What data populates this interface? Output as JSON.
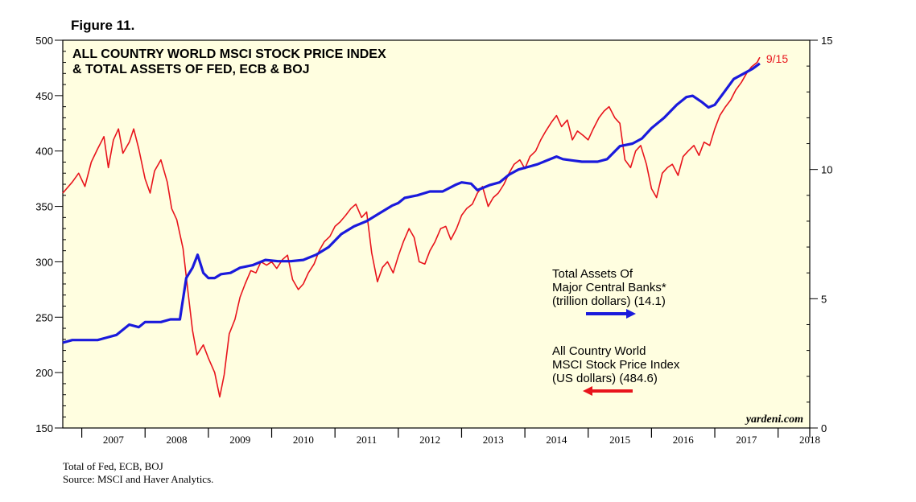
{
  "figure_label": "Figure 11.",
  "footnotes": {
    "line1": "Total of Fed, ECB, BOJ",
    "line2": "Source: MSCI and Haver Analytics."
  },
  "chart_data": {
    "type": "line",
    "title_line1": "ALL COUNTRY WORLD MSCI STOCK PRICE INDEX",
    "title_line2": "& TOTAL ASSETS OF FED, ECB & BOJ",
    "x_ticks": [
      "2007",
      "2008",
      "2009",
      "2010",
      "2011",
      "2012",
      "2013",
      "2014",
      "2015",
      "2016",
      "2017",
      "2018"
    ],
    "xlim": [
      2006.7,
      2018.5
    ],
    "left_axis": {
      "ticks": [
        "150",
        "200",
        "250",
        "300",
        "350",
        "400",
        "450",
        "500"
      ],
      "ylim": [
        150,
        500
      ]
    },
    "right_axis": {
      "ticks": [
        "0",
        "5",
        "10",
        "15"
      ],
      "ylim": [
        0,
        15
      ]
    },
    "series": [
      {
        "name": "All Country World MSCI Stock Price Index (US dollars)",
        "axis": "left",
        "color": "#e8141c",
        "points": [
          [
            2006.7,
            362
          ],
          [
            2006.85,
            372
          ],
          [
            2006.95,
            380
          ],
          [
            2007.05,
            368
          ],
          [
            2007.15,
            390
          ],
          [
            2007.25,
            402
          ],
          [
            2007.35,
            413
          ],
          [
            2007.42,
            385
          ],
          [
            2007.5,
            410
          ],
          [
            2007.58,
            420
          ],
          [
            2007.65,
            398
          ],
          [
            2007.75,
            408
          ],
          [
            2007.82,
            420
          ],
          [
            2007.9,
            402
          ],
          [
            2008.0,
            375
          ],
          [
            2008.08,
            362
          ],
          [
            2008.15,
            382
          ],
          [
            2008.25,
            392
          ],
          [
            2008.35,
            372
          ],
          [
            2008.42,
            348
          ],
          [
            2008.5,
            338
          ],
          [
            2008.6,
            312
          ],
          [
            2008.68,
            272
          ],
          [
            2008.75,
            238
          ],
          [
            2008.82,
            216
          ],
          [
            2008.92,
            225
          ],
          [
            2009.0,
            213
          ],
          [
            2009.1,
            200
          ],
          [
            2009.18,
            178
          ],
          [
            2009.25,
            198
          ],
          [
            2009.33,
            235
          ],
          [
            2009.42,
            248
          ],
          [
            2009.5,
            268
          ],
          [
            2009.58,
            280
          ],
          [
            2009.67,
            292
          ],
          [
            2009.75,
            290
          ],
          [
            2009.83,
            300
          ],
          [
            2009.92,
            297
          ],
          [
            2010.0,
            300
          ],
          [
            2010.08,
            294
          ],
          [
            2010.17,
            302
          ],
          [
            2010.25,
            306
          ],
          [
            2010.33,
            284
          ],
          [
            2010.42,
            275
          ],
          [
            2010.5,
            280
          ],
          [
            2010.58,
            290
          ],
          [
            2010.67,
            298
          ],
          [
            2010.75,
            310
          ],
          [
            2010.83,
            318
          ],
          [
            2010.92,
            323
          ],
          [
            2011.0,
            332
          ],
          [
            2011.08,
            336
          ],
          [
            2011.17,
            342
          ],
          [
            2011.25,
            348
          ],
          [
            2011.33,
            352
          ],
          [
            2011.42,
            340
          ],
          [
            2011.5,
            345
          ],
          [
            2011.58,
            308
          ],
          [
            2011.67,
            282
          ],
          [
            2011.75,
            295
          ],
          [
            2011.83,
            300
          ],
          [
            2011.92,
            290
          ],
          [
            2012.0,
            305
          ],
          [
            2012.08,
            318
          ],
          [
            2012.17,
            330
          ],
          [
            2012.25,
            322
          ],
          [
            2012.33,
            300
          ],
          [
            2012.42,
            298
          ],
          [
            2012.5,
            310
          ],
          [
            2012.58,
            318
          ],
          [
            2012.67,
            330
          ],
          [
            2012.75,
            332
          ],
          [
            2012.83,
            320
          ],
          [
            2012.92,
            330
          ],
          [
            2013.0,
            342
          ],
          [
            2013.08,
            348
          ],
          [
            2013.17,
            352
          ],
          [
            2013.25,
            362
          ],
          [
            2013.33,
            368
          ],
          [
            2013.42,
            350
          ],
          [
            2013.5,
            358
          ],
          [
            2013.58,
            362
          ],
          [
            2013.67,
            370
          ],
          [
            2013.75,
            380
          ],
          [
            2013.83,
            388
          ],
          [
            2013.92,
            392
          ],
          [
            2014.0,
            384
          ],
          [
            2014.08,
            395
          ],
          [
            2014.17,
            400
          ],
          [
            2014.25,
            410
          ],
          [
            2014.33,
            418
          ],
          [
            2014.42,
            426
          ],
          [
            2014.5,
            432
          ],
          [
            2014.58,
            422
          ],
          [
            2014.67,
            428
          ],
          [
            2014.75,
            410
          ],
          [
            2014.83,
            418
          ],
          [
            2014.92,
            414
          ],
          [
            2015.0,
            410
          ],
          [
            2015.08,
            420
          ],
          [
            2015.17,
            430
          ],
          [
            2015.25,
            436
          ],
          [
            2015.33,
            440
          ],
          [
            2015.42,
            430
          ],
          [
            2015.5,
            425
          ],
          [
            2015.58,
            392
          ],
          [
            2015.67,
            385
          ],
          [
            2015.75,
            400
          ],
          [
            2015.83,
            405
          ],
          [
            2015.92,
            388
          ],
          [
            2016.0,
            366
          ],
          [
            2016.08,
            358
          ],
          [
            2016.17,
            380
          ],
          [
            2016.25,
            385
          ],
          [
            2016.33,
            388
          ],
          [
            2016.42,
            378
          ],
          [
            2016.5,
            395
          ],
          [
            2016.58,
            400
          ],
          [
            2016.67,
            405
          ],
          [
            2016.75,
            396
          ],
          [
            2016.83,
            408
          ],
          [
            2016.92,
            405
          ],
          [
            2017.0,
            420
          ],
          [
            2017.08,
            432
          ],
          [
            2017.17,
            440
          ],
          [
            2017.25,
            446
          ],
          [
            2017.33,
            455
          ],
          [
            2017.42,
            462
          ],
          [
            2017.5,
            470
          ],
          [
            2017.58,
            476
          ],
          [
            2017.67,
            480
          ],
          [
            2017.71,
            484.6
          ]
        ]
      },
      {
        "name": "Total Assets Of Major Central Banks* (trillion dollars)",
        "axis": "right",
        "color": "#1a1adc",
        "points": [
          [
            2006.7,
            3.3
          ],
          [
            2006.85,
            3.4
          ],
          [
            2007.0,
            3.4
          ],
          [
            2007.25,
            3.4
          ],
          [
            2007.4,
            3.5
          ],
          [
            2007.55,
            3.6
          ],
          [
            2007.75,
            4.0
          ],
          [
            2007.9,
            3.9
          ],
          [
            2008.0,
            4.1
          ],
          [
            2008.1,
            4.1
          ],
          [
            2008.25,
            4.1
          ],
          [
            2008.4,
            4.2
          ],
          [
            2008.55,
            4.2
          ],
          [
            2008.65,
            5.8
          ],
          [
            2008.75,
            6.2
          ],
          [
            2008.83,
            6.7
          ],
          [
            2008.92,
            6.0
          ],
          [
            2009.0,
            5.8
          ],
          [
            2009.1,
            5.8
          ],
          [
            2009.2,
            5.95
          ],
          [
            2009.35,
            6.0
          ],
          [
            2009.5,
            6.2
          ],
          [
            2009.7,
            6.3
          ],
          [
            2009.9,
            6.5
          ],
          [
            2010.1,
            6.45
          ],
          [
            2010.3,
            6.45
          ],
          [
            2010.5,
            6.5
          ],
          [
            2010.7,
            6.7
          ],
          [
            2010.9,
            7.0
          ],
          [
            2011.1,
            7.5
          ],
          [
            2011.3,
            7.8
          ],
          [
            2011.5,
            8.0
          ],
          [
            2011.7,
            8.3
          ],
          [
            2011.9,
            8.6
          ],
          [
            2012.0,
            8.7
          ],
          [
            2012.1,
            8.9
          ],
          [
            2012.3,
            9.0
          ],
          [
            2012.5,
            9.15
          ],
          [
            2012.7,
            9.15
          ],
          [
            2012.9,
            9.4
          ],
          [
            2013.0,
            9.5
          ],
          [
            2013.15,
            9.45
          ],
          [
            2013.25,
            9.2
          ],
          [
            2013.45,
            9.4
          ],
          [
            2013.6,
            9.5
          ],
          [
            2013.75,
            9.8
          ],
          [
            2013.9,
            10.0
          ],
          [
            2014.05,
            10.1
          ],
          [
            2014.2,
            10.2
          ],
          [
            2014.35,
            10.35
          ],
          [
            2014.5,
            10.5
          ],
          [
            2014.6,
            10.4
          ],
          [
            2014.75,
            10.35
          ],
          [
            2014.9,
            10.3
          ],
          [
            2015.0,
            10.3
          ],
          [
            2015.15,
            10.3
          ],
          [
            2015.3,
            10.4
          ],
          [
            2015.5,
            10.9
          ],
          [
            2015.7,
            11.0
          ],
          [
            2015.85,
            11.2
          ],
          [
            2016.0,
            11.6
          ],
          [
            2016.2,
            12.0
          ],
          [
            2016.4,
            12.5
          ],
          [
            2016.55,
            12.8
          ],
          [
            2016.65,
            12.85
          ],
          [
            2016.8,
            12.6
          ],
          [
            2016.9,
            12.4
          ],
          [
            2017.0,
            12.5
          ],
          [
            2017.15,
            13.0
          ],
          [
            2017.3,
            13.5
          ],
          [
            2017.45,
            13.7
          ],
          [
            2017.6,
            13.9
          ],
          [
            2017.71,
            14.1
          ]
        ]
      }
    ],
    "legend": {
      "assets": {
        "line1": "Total Assets Of",
        "line2": "Major Central Banks*",
        "line3": "(trillion dollars) (14.1)"
      },
      "msci": {
        "line1": "All Country World",
        "line2": "MSCI Stock Price Index",
        "line3": "(US dollars) (484.6)"
      }
    },
    "end_label": "9/15",
    "watermark": "yardeni.com",
    "background": "#fffee0",
    "grid": false
  }
}
